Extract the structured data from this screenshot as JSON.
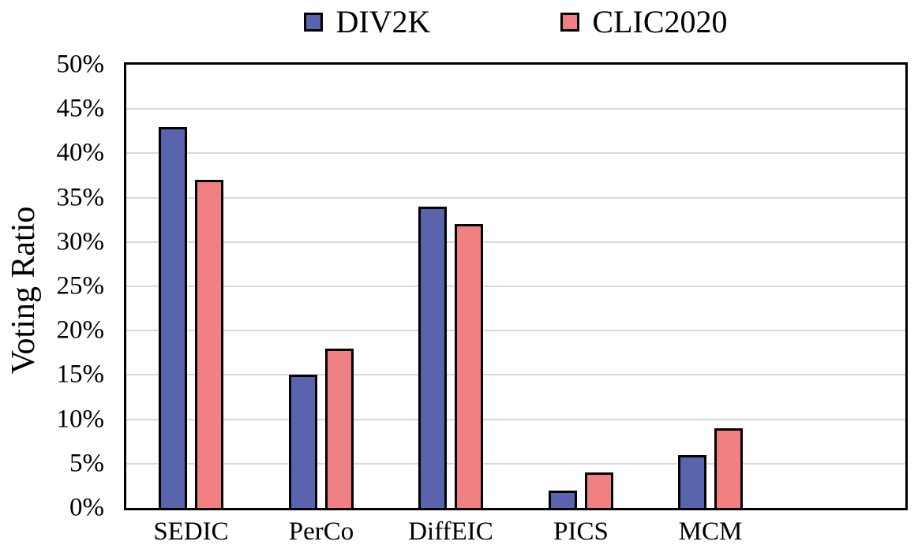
{
  "chart_data": {
    "type": "bar",
    "title": "",
    "ylabel": "Voting Ratio",
    "xlabel": "",
    "categories": [
      "SEDIC",
      "PerCo",
      "DiffEIC",
      "PICS",
      "MCM"
    ],
    "series": [
      {
        "name": "DIV2K",
        "color": "#5A64AE",
        "values": [
          43,
          15,
          34,
          2,
          6
        ]
      },
      {
        "name": "CLIC2020",
        "color": "#F08082",
        "values": [
          37,
          18,
          32,
          4,
          9
        ]
      }
    ],
    "ylim": [
      0,
      50
    ],
    "ytick_step": 5,
    "ytick_labels": [
      "0%",
      "5%",
      "10%",
      "15%",
      "20%",
      "25%",
      "30%",
      "35%",
      "40%",
      "45%",
      "50%"
    ],
    "grid": true,
    "gridline_color": "#D9D9D9",
    "axis_border_color": "#000000",
    "bar_border_color": "#000000",
    "legend_position": "top"
  }
}
